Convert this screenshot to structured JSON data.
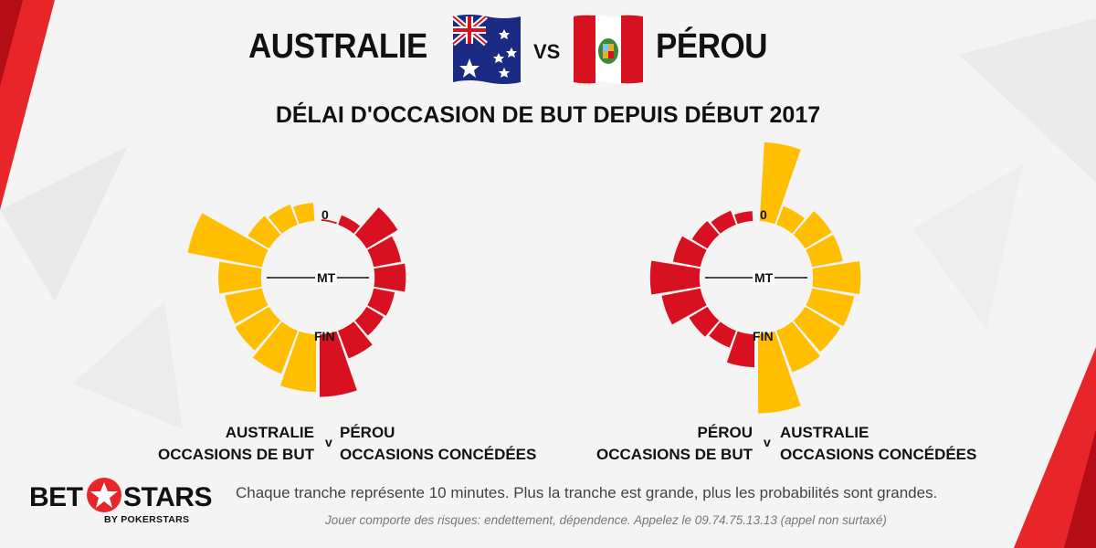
{
  "header": {
    "team_left": "AUSTRALIE",
    "vs": "VS",
    "team_right": "PÉROU",
    "left_flag_icon": "australia-flag-icon",
    "right_flag_icon": "peru-flag-icon"
  },
  "subtitle": "DÉLAI D'OCCASION DE BUT DEPUIS DÉBUT 2017",
  "colors": {
    "yellow": "#FFBF00",
    "red": "#D7111F",
    "accent_red": "#E8262A"
  },
  "chart_data": [
    {
      "type": "radial-bar",
      "labels": {
        "top": "0",
        "middle": "MT",
        "bottom": "FIN"
      },
      "left_half": {
        "series": "AUSTRALIE OCCASIONS DE BUT",
        "color": "yellow",
        "values": [
          0.55,
          0.65,
          0.75,
          2.3,
          1.3,
          1.15,
          1.2,
          1.4,
          1.75
        ]
      },
      "right_half": {
        "series": "PÉROU OCCASIONS CONCÉDÉES",
        "color": "red",
        "values": [
          0.05,
          0.3,
          1.1,
          0.85,
          0.95,
          0.65,
          0.6,
          0.9,
          1.9
        ]
      },
      "legend_left": [
        "AUSTRALIE",
        "OCCASIONS DE BUT"
      ],
      "legend_right": [
        "PÉROU",
        "OCCASIONS CONCÉDÉES"
      ],
      "legend_v": "v"
    },
    {
      "type": "radial-bar",
      "labels": {
        "top": "0",
        "middle": "MT",
        "bottom": "FIN"
      },
      "left_half": {
        "series": "PÉROU OCCASIONS DE BUT",
        "color": "red",
        "values": [
          0.3,
          0.45,
          0.55,
          0.85,
          1.5,
          1.2,
          0.65,
          0.55,
          1.0
        ]
      },
      "right_half": {
        "series": "AUSTRALIE OCCASIONS CONCÉDÉES",
        "color": "yellow",
        "values": [
          2.4,
          0.6,
          0.95,
          0.95,
          1.45,
          1.3,
          1.25,
          1.35,
          2.4
        ]
      },
      "legend_left": [
        "PÉROU",
        "OCCASIONS DE BUT"
      ],
      "legend_right": [
        "AUSTRALIE",
        "OCCASIONS CONCÉDÉES"
      ],
      "legend_v": "v"
    }
  ],
  "footer": {
    "note": "Chaque tranche représente 10 minutes. Plus la tranche est grande, plus les probabilités sont grandes.",
    "disclaimer": "Jouer comporte des risques: endettement, dépendence. Appelez le 09.74.75.13.13 (appel non surtaxé)",
    "logo_left": "BET",
    "logo_right": "STARS",
    "logo_sub": "BY POKERSTARS",
    "logo_icon": "star-icon"
  }
}
